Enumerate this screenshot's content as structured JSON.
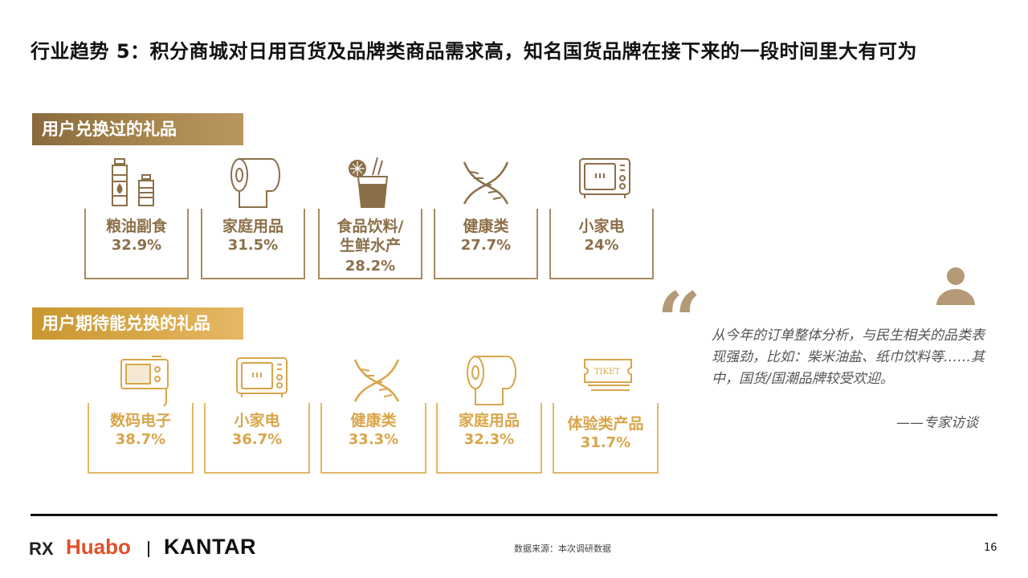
{
  "title": "行业趋势 5：积分商城对日用百货及品牌类商品需求高，知名国货品牌在接下来的一段时间里大有可为",
  "section1": {
    "heading": "用户兑换过的礼品",
    "items": [
      {
        "label": "粮油副食",
        "label2": "",
        "value": "32.9%",
        "icon": "bottles-icon"
      },
      {
        "label": "家庭用品",
        "label2": "",
        "value": "31.5%",
        "icon": "paper-roll-icon"
      },
      {
        "label": "食品饮料/",
        "label2": "生鲜水产",
        "value": "28.2%",
        "icon": "drink-icon"
      },
      {
        "label": "健康类",
        "label2": "",
        "value": "27.7%",
        "icon": "dna-icon"
      },
      {
        "label": "小家电",
        "label2": "",
        "value": "24%",
        "icon": "microwave-icon"
      }
    ]
  },
  "section2": {
    "heading": "用户期待能兑换的礼品",
    "items": [
      {
        "label": "数码电子",
        "value": "38.7%",
        "icon": "device-icon"
      },
      {
        "label": "小家电",
        "value": "36.7%",
        "icon": "microwave-icon"
      },
      {
        "label": "健康类",
        "value": "33.3%",
        "icon": "dna-icon"
      },
      {
        "label": "家庭用品",
        "value": "32.3%",
        "icon": "paper-roll-icon"
      },
      {
        "label": "体验类产品",
        "value": "31.7%",
        "icon": "ticket-icon"
      }
    ]
  },
  "quote": {
    "text": "从今年的订单整体分析，与民生相关的品类表现强劲，比如：柴米油盐、纸巾饮料等……其中，国货/国潮品牌较受欢迎。",
    "attribution": "——专家访谈"
  },
  "footer": {
    "logo_rx": "RX",
    "logo_huabo": "Huabo",
    "logo_kantar": "KANTAR",
    "source": "数据来源：本次调研数据",
    "page": "16"
  },
  "colors": {
    "brown": "#8b6f49",
    "gold": "#d9a54a",
    "quote": "#b49a77"
  }
}
